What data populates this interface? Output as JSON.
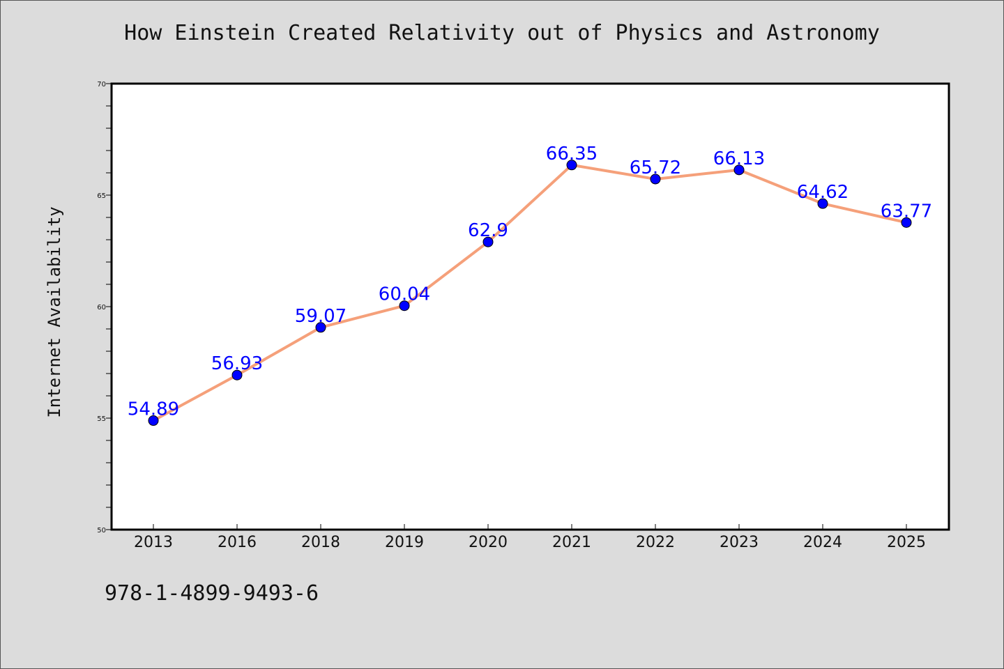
{
  "chart_data": {
    "type": "line",
    "title": "How Einstein Created Relativity out of Physics and Astronomy",
    "xlabel": "",
    "ylabel": "Internet Availability",
    "categories": [
      "2013",
      "2016",
      "2018",
      "2019",
      "2020",
      "2021",
      "2022",
      "2023",
      "2024",
      "2025"
    ],
    "series": [
      {
        "values": [
          54.89,
          56.93,
          59.07,
          60.04,
          62.9,
          66.35,
          65.72,
          66.13,
          64.62,
          63.77
        ],
        "labels": [
          "54.89",
          "56.93",
          "59.07",
          "60.04",
          "62.9",
          "66.35",
          "65.72",
          "66.13",
          "64.62",
          "63.77"
        ]
      }
    ],
    "ylim": [
      50,
      70
    ],
    "yticks": [
      "50",
      "55",
      "60",
      "65",
      "70"
    ],
    "grid": false,
    "line_color": "#f5a07a",
    "marker_color": "#0000ff",
    "label_color": "#0000ff"
  },
  "footer": {
    "text": "978-1-4899-9493-6"
  }
}
